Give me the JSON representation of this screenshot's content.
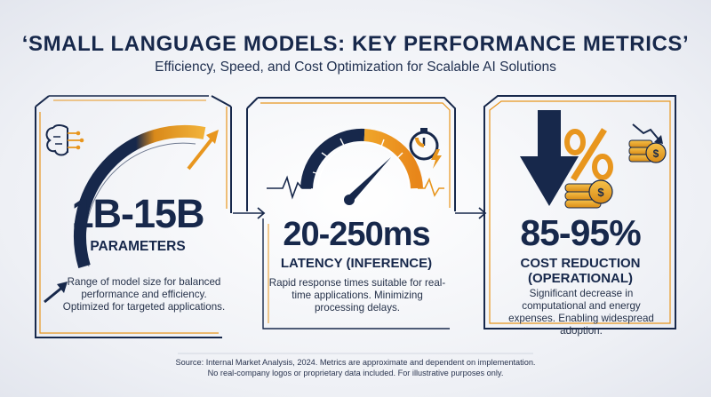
{
  "header": {
    "title": "‘SMALL LANGUAGE MODELS: KEY PERFORMANCE METRICS’",
    "subtitle": "Efficiency, Speed, and Cost Optimization for Scalable AI Solutions"
  },
  "panels": [
    {
      "value": "1B-15B",
      "label": "PARAMETERS",
      "description": "Range of model size for balanced performance and efficiency. Optimized for targeted applications.",
      "icons": [
        "brain-circuit-icon",
        "growth-arrow-icon"
      ]
    },
    {
      "value": "20-250ms",
      "label": "LATENCY (INFERENCE)",
      "description": "Rapid response times suitable for real-time applications. Minimizing processing delays.",
      "icons": [
        "speedometer-icon",
        "stopwatch-lightning-icon"
      ]
    },
    {
      "value": "85-95%",
      "label_line1": "COST REDUCTION",
      "label_line2": "(OPERATIONAL)",
      "description": "Significant decrease in computational and energy expenses. Enabling widespread adoption.",
      "icons": [
        "down-arrow-icon",
        "percent-icon",
        "coin-stack-icon",
        "dollar-coins-icon"
      ]
    }
  ],
  "footer": {
    "line1": "Source: Internal Market Analysis, 2024. Metrics are approximate and dependent on implementation.",
    "line2": "No real-company logos or proprietary data included. For illustrative purposes only."
  },
  "colors": {
    "navy": "#17284b",
    "orange": "#e8961e",
    "gold": "#f2b33a"
  }
}
